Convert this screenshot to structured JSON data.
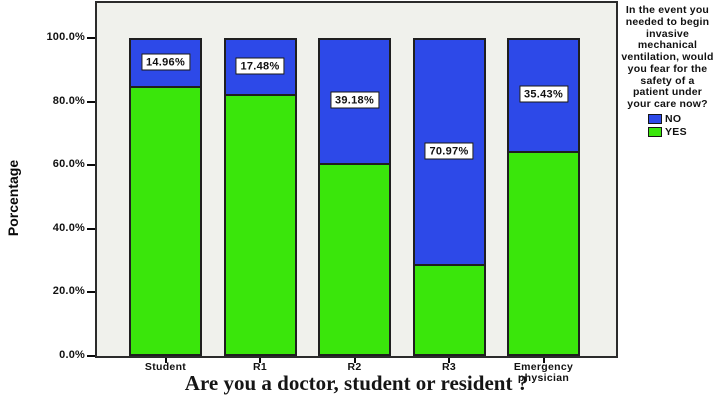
{
  "chart_data": {
    "type": "bar",
    "subtype": "stacked-percent",
    "title": "Are you a doctor, student or resident ?",
    "xlabel": "Are you a doctor, student or resident ?",
    "ylabel": "Porcentage",
    "categories": [
      "Student",
      "R1",
      "R2",
      "R3",
      "Emergency physician"
    ],
    "series": [
      {
        "name": "YES",
        "color": "#3ae60b",
        "values": [
          85.04,
          82.52,
          60.82,
          29.03,
          64.57
        ]
      },
      {
        "name": "NO",
        "color": "#2d49e8",
        "values": [
          14.96,
          17.48,
          39.18,
          70.97,
          35.43
        ]
      }
    ],
    "bar_labels": [
      "14.96%",
      "17.48%",
      "39.18%",
      "70.97%",
      "35.43%"
    ],
    "bar_label_series": "NO",
    "y_ticks": [
      {
        "value": 0,
        "label": "0.0%"
      },
      {
        "value": 20,
        "label": "20.0%"
      },
      {
        "value": 40,
        "label": "40.0%"
      },
      {
        "value": 60,
        "label": "60.0%"
      },
      {
        "value": 80,
        "label": "80.0%"
      },
      {
        "value": 100,
        "label": "100.0%"
      }
    ],
    "ylim": [
      0,
      100
    ],
    "grid": false,
    "plot_background": "#f0f1ec",
    "legend_position": "right",
    "legend_title": "In the event you needed to begin invasive mechanical ventilation, would you fear for the safety of a patient under your care now?",
    "legend": [
      {
        "label": "NO",
        "color": "#2d49e8"
      },
      {
        "label": "YES",
        "color": "#3ae60b"
      }
    ]
  }
}
